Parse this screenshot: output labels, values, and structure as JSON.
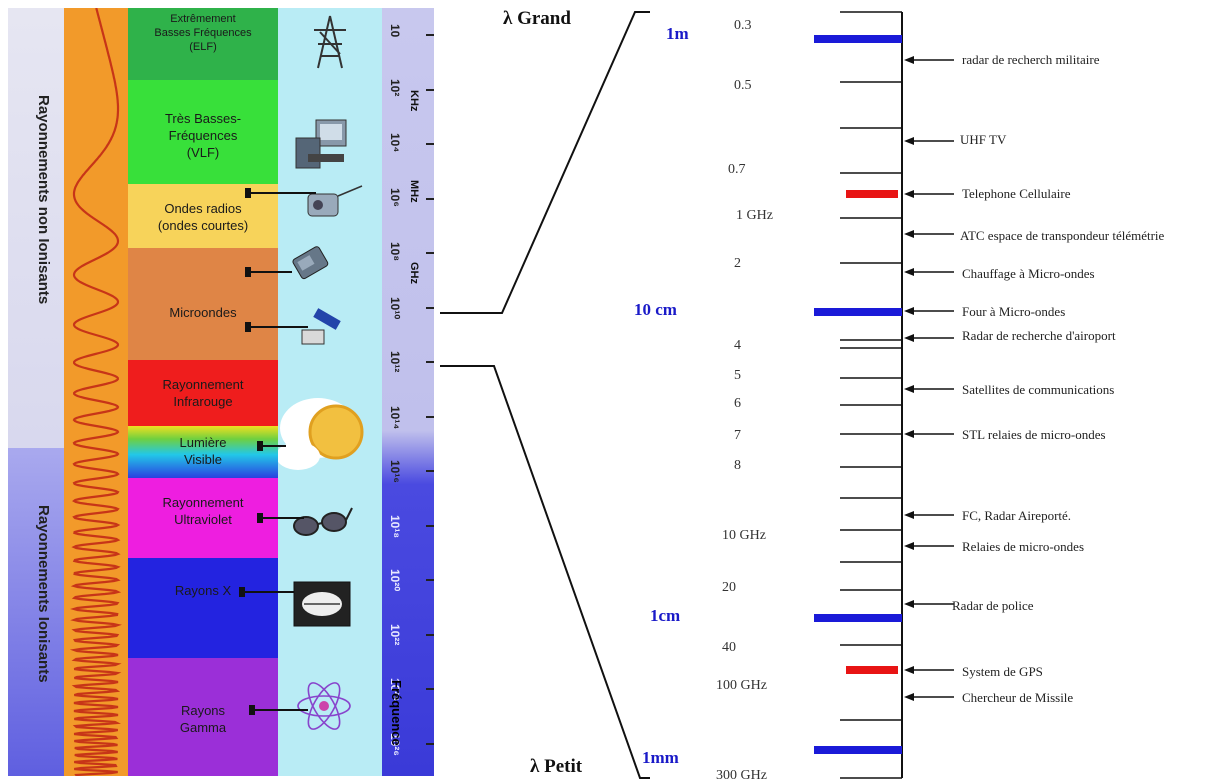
{
  "left_panel": {
    "ionizing_labels": {
      "non_ionizing": "Rayonnements non Ionisants",
      "ionizing": "Rayonnements Ionisants"
    },
    "bands": [
      {
        "id": "elf",
        "label": "Extrêmement\nBasses Fréquences\n(ELF)",
        "color": "#2fb24a"
      },
      {
        "id": "vlf",
        "label": "Très Basses-\nFréquences\n(VLF)",
        "color": "#33dd33"
      },
      {
        "id": "radio",
        "label": "Ondes radios\n(ondes courtes)",
        "color": "#f7d35a"
      },
      {
        "id": "micro",
        "label": "Microondes",
        "color": "#e0874a"
      },
      {
        "id": "ir",
        "label": "Rayonnement\nInfrarouge",
        "color": "#ee1c1c"
      },
      {
        "id": "visible",
        "label": "Lumière\nVisible",
        "color": "#22c8e8"
      },
      {
        "id": "uv",
        "label": "Rayonnement\nUltraviolet",
        "color": "#ee1ee0"
      },
      {
        "id": "xray",
        "label": "Rayons X",
        "color": "#2323e0"
      },
      {
        "id": "gamma",
        "label": "Rayons\nGamma",
        "color": "#9b2fd8"
      }
    ],
    "frequency_ticks": [
      "10",
      "10²",
      "10⁴",
      "10⁶",
      "10⁸",
      "10¹⁰",
      "10¹²",
      "10¹⁴",
      "10¹⁶",
      "10¹⁸",
      "10²⁰",
      "10²²",
      "10²⁴",
      "10²⁶"
    ],
    "unit_labels": [
      "KHz",
      "MHz",
      "GHz"
    ],
    "axis_label": "Fréquence"
  },
  "right_panel": {
    "lambda_top": "λ Grand",
    "lambda_bottom": "λ Petit",
    "wavelength_labels": [
      "1m",
      "10 cm",
      "1cm",
      "1mm"
    ],
    "frequency_values": [
      "0.3",
      "0.5",
      "0.7",
      "1 GHz",
      "2",
      "4",
      "5",
      "6",
      "7",
      "8",
      "10 GHz",
      "20",
      "40",
      "100 GHz",
      "300 GHz"
    ],
    "applications": [
      "radar de recherch militaire",
      "UHF TV",
      "Telephone Cellulaire",
      "ATC espace de transpondeur télémétrie",
      "Chauffage à Micro-ondes",
      "Four à Micro-ondes",
      "Radar de recherche d'airoport",
      "Satellites de communications",
      "STL relaies de micro-ondes",
      "FC, Radar Aireporté.",
      "Relaies de micro-ondes",
      "Radar de police",
      "System de GPS",
      "Chercheur de Missile"
    ],
    "colors": {
      "wavelength_mark": "#1a1ad8",
      "highlight_mark": "#e81414",
      "text_blue": "#1a1ac8"
    }
  }
}
